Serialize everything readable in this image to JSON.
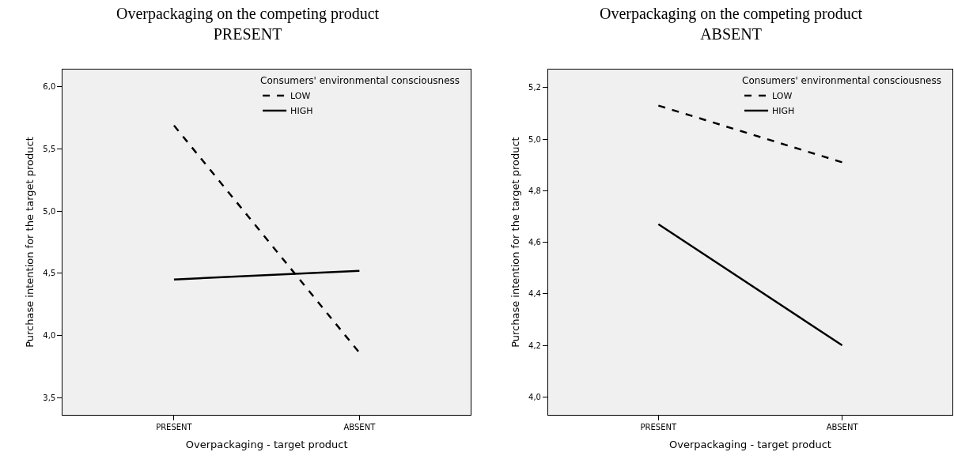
{
  "chart_data": [
    {
      "type": "line",
      "title": "Overpackaging on the competing product\nPRESENT",
      "xlabel": "Overpackaging - target product",
      "ylabel": "Purchase intention for the target product",
      "legend_title": "Consumers' environmental consciousness",
      "categories": [
        "PRESENT",
        "ABSENT"
      ],
      "series": [
        {
          "name": "LOW",
          "color": "#000000",
          "values": [
            5.69,
            3.86
          ],
          "line_style": "dashed"
        },
        {
          "name": "HIGH",
          "color": "#000000",
          "values": [
            4.45,
            4.52
          ],
          "line_style": "solid"
        }
      ],
      "ylim": [
        3.36,
        6.14
      ],
      "yticks": [
        {
          "value": 3.5,
          "label": "3,5"
        },
        {
          "value": 4.0,
          "label": "4,0"
        },
        {
          "value": 4.5,
          "label": "4,5"
        },
        {
          "value": 5.0,
          "label": "5,0"
        },
        {
          "value": 5.5,
          "label": "5,5"
        },
        {
          "value": 6.0,
          "label": "6,0"
        }
      ],
      "grid": false,
      "legend": "top right",
      "marker": "none"
    },
    {
      "type": "line",
      "title": "Overpackaging on the competing product\nABSENT",
      "xlabel": "Overpackaging - target product",
      "ylabel": "Purchase intention for the target product",
      "legend_title": "Consumers' environmental consciousness",
      "categories": [
        "PRESENT",
        "ABSENT"
      ],
      "series": [
        {
          "name": "LOW",
          "color": "#000000",
          "values": [
            5.13,
            4.91
          ],
          "line_style": "dashed"
        },
        {
          "name": "HIGH",
          "color": "#000000",
          "values": [
            4.67,
            4.2
          ],
          "line_style": "solid"
        }
      ],
      "ylim": [
        3.93,
        5.27
      ],
      "yticks": [
        {
          "value": 4.0,
          "label": "4,0"
        },
        {
          "value": 4.2,
          "label": "4,2"
        },
        {
          "value": 4.4,
          "label": "4,4"
        },
        {
          "value": 4.6,
          "label": "4,6"
        },
        {
          "value": 4.8,
          "label": "4,8"
        },
        {
          "value": 5.0,
          "label": "5,0"
        },
        {
          "value": 5.2,
          "label": "5,2"
        }
      ],
      "grid": false,
      "legend": "top right",
      "marker": "none"
    }
  ]
}
